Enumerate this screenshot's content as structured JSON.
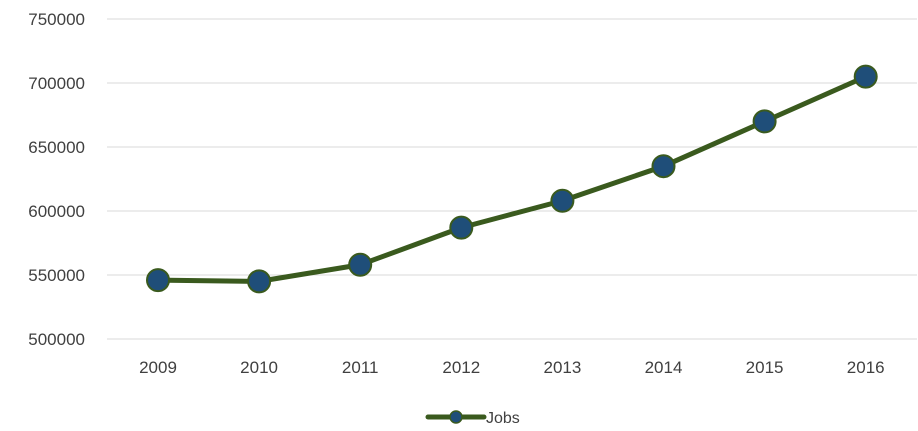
{
  "chart_data": {
    "type": "line",
    "title": "",
    "xlabel": "",
    "ylabel": "",
    "x": [
      "2009",
      "2010",
      "2011",
      "2012",
      "2013",
      "2014",
      "2015",
      "2016"
    ],
    "series": [
      {
        "name": "Jobs",
        "values": [
          546000,
          545000,
          558000,
          587000,
          608000,
          635000,
          670000,
          705000
        ],
        "line_color": "#3a5a1e",
        "marker_color": "#1f4e79",
        "marker_edge_color": "#3a5a1e"
      }
    ],
    "ylim": [
      500000,
      750000
    ],
    "yticks": [
      "500000",
      "550000",
      "600000",
      "650000",
      "700000",
      "750000"
    ],
    "grid": true,
    "legend_position": "bottom"
  }
}
